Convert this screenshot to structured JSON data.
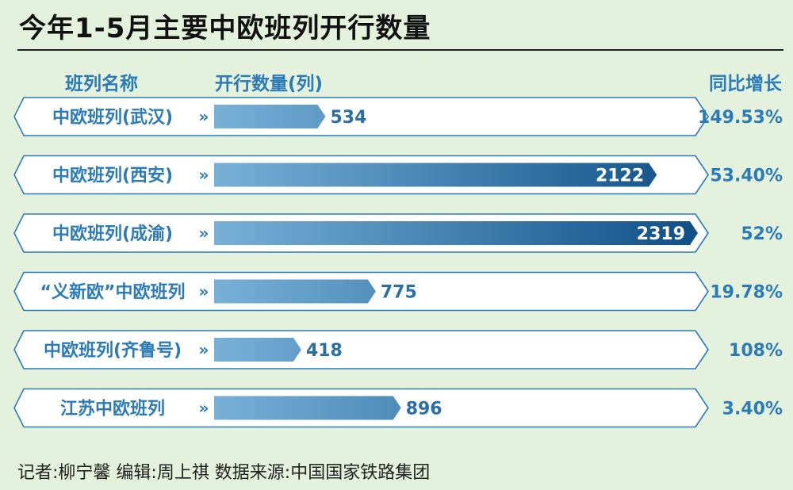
{
  "title": "今年1-5月主要中欧班列开行数量",
  "headers": {
    "name": "班列名称",
    "count": "开行数量(列)",
    "growth": "同比增长"
  },
  "chevron": "»",
  "footer": "记者:柳宁馨    编辑:周上祺    数据来源:中国国家铁路集团",
  "colors": {
    "background": "#e4f1dd",
    "accent": "#2b7bb8",
    "bar_light": "#78b1d8",
    "bar_dark": "#0e4f86"
  },
  "chart_data": {
    "type": "bar",
    "orientation": "horizontal",
    "title": "今年1-5月主要中欧班列开行数量",
    "categories": [
      "中欧班列(武汉)",
      "中欧班列(西安)",
      "中欧班列(成渝)",
      "“义新欧”中欧班列",
      "中欧班列(齐鲁号)",
      "江苏中欧班列"
    ],
    "values": [
      534,
      2122,
      2319,
      775,
      418,
      896
    ],
    "growth": [
      "149.53%",
      "53.40%",
      "52%",
      "19.78%",
      "108%",
      "3.40%"
    ],
    "xlim": [
      0,
      2319
    ],
    "grid": false,
    "legend": "none"
  }
}
